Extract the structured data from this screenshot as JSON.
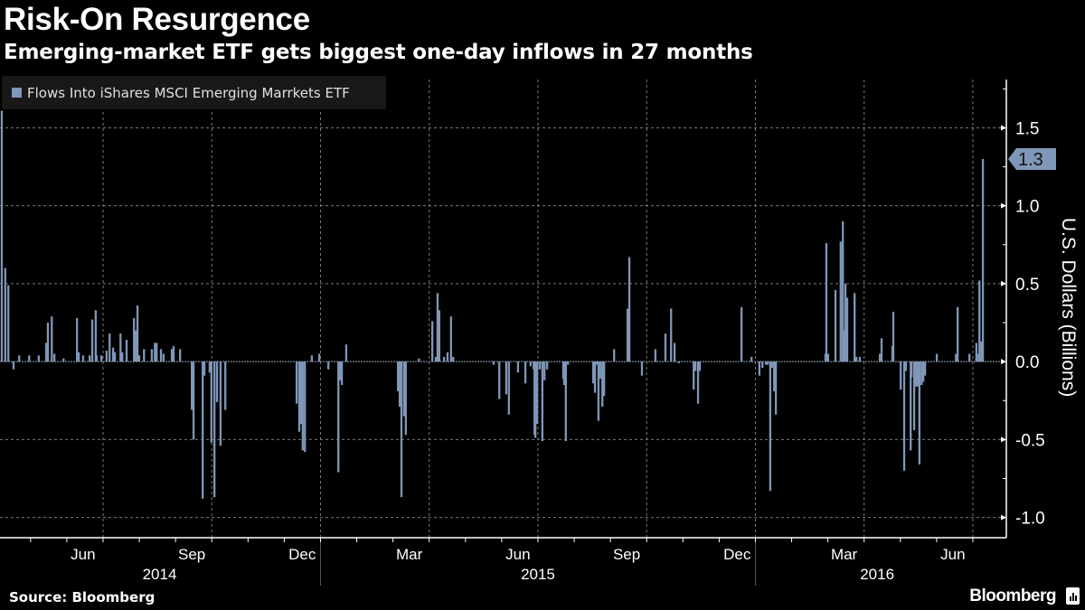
{
  "header": {
    "title": "Risk-On Resurgence",
    "subtitle": "Emerging-market ETF gets biggest one-day inflows in 27 months"
  },
  "footer": {
    "source": "Source: Bloomberg",
    "brand": "Bloomberg"
  },
  "colors": {
    "bar": "#7f97b8",
    "background": "#000000",
    "grid": "#8a8a8a"
  },
  "chart_data": {
    "type": "bar",
    "title": "Risk-On Resurgence",
    "subtitle": "Emerging-market ETF gets biggest one-day inflows in 27 months",
    "legend": [
      {
        "name": "Flows Into iShares MSCI Emerging Marrkets ETF",
        "color": "#7f97b8"
      }
    ],
    "legend_position": "top-left",
    "ylabel": "U.S. Dollars (Billions)",
    "y_axis_side": "right",
    "ylim": [
      -1.13,
      1.81
    ],
    "y_ticks": [
      {
        "value": 1.5,
        "label": "1.5"
      },
      {
        "value": 1.0,
        "label": "1.0"
      },
      {
        "value": 0.5,
        "label": "0.5"
      },
      {
        "value": 0.0,
        "label": "0.0"
      },
      {
        "value": -0.5,
        "label": "-0.5"
      },
      {
        "value": -1.0,
        "label": "-1.0"
      }
    ],
    "xlim": [
      2014.263,
      2016.577
    ],
    "x_unit": "decimal year",
    "x_month_labels": [
      {
        "value": 2014.454,
        "label": "Jun"
      },
      {
        "value": 2014.704,
        "label": "Sep"
      },
      {
        "value": 2014.958,
        "label": "Dec"
      },
      {
        "value": 2015.204,
        "label": "Mar"
      },
      {
        "value": 2015.454,
        "label": "Jun"
      },
      {
        "value": 2015.704,
        "label": "Sep"
      },
      {
        "value": 2015.958,
        "label": "Dec"
      },
      {
        "value": 2016.204,
        "label": "Mar"
      },
      {
        "value": 2016.454,
        "label": "Jun"
      }
    ],
    "x_year_labels": [
      {
        "value": 2014.63,
        "label": "2014"
      },
      {
        "value": 2015.5,
        "label": "2015"
      },
      {
        "value": 2016.28,
        "label": "2016"
      }
    ],
    "grid": true,
    "last_value": {
      "value": 1.3,
      "label": "1.3"
    },
    "series": [
      {
        "name": "Flows Into iShares MSCI Emerging Marrkets ETF",
        "points": [
          [
            2014.267,
            1.61
          ],
          [
            2014.275,
            0.6
          ],
          [
            2014.282,
            0.49
          ],
          [
            2014.294,
            -0.05
          ],
          [
            2014.307,
            0.04
          ],
          [
            2014.33,
            0.04
          ],
          [
            2014.352,
            0.04
          ],
          [
            2014.369,
            0.12
          ],
          [
            2014.373,
            0.25
          ],
          [
            2014.382,
            0.29
          ],
          [
            2014.388,
            0.05
          ],
          [
            2014.409,
            0.02
          ],
          [
            2014.44,
            0.28
          ],
          [
            2014.444,
            0.06
          ],
          [
            2014.454,
            0.04
          ],
          [
            2014.469,
            0.04
          ],
          [
            2014.475,
            0.27
          ],
          [
            2014.483,
            0.33
          ],
          [
            2014.485,
            0.04
          ],
          [
            2014.496,
            0.04
          ],
          [
            2014.508,
            0.07
          ],
          [
            2014.515,
            0.18
          ],
          [
            2014.523,
            0.09
          ],
          [
            2014.527,
            0.06
          ],
          [
            2014.54,
            0.18
          ],
          [
            2014.544,
            0.06
          ],
          [
            2014.554,
            0.14
          ],
          [
            2014.571,
            0.28
          ],
          [
            2014.575,
            0.2
          ],
          [
            2014.579,
            0.36
          ],
          [
            2014.583,
            0.04
          ],
          [
            2014.594,
            0.08
          ],
          [
            2014.612,
            0.08
          ],
          [
            2014.619,
            0.12
          ],
          [
            2014.623,
            0.12
          ],
          [
            2014.633,
            0.08
          ],
          [
            2014.639,
            0.05
          ],
          [
            2014.658,
            0.08
          ],
          [
            2014.662,
            0.1
          ],
          [
            2014.677,
            0.08
          ],
          [
            2014.704,
            -0.31
          ],
          [
            2014.708,
            -0.5
          ],
          [
            2014.729,
            -0.88
          ],
          [
            2014.733,
            -0.09
          ],
          [
            2014.745,
            -0.07
          ],
          [
            2014.749,
            -0.52
          ],
          [
            2014.756,
            -0.87
          ],
          [
            2014.762,
            -0.26
          ],
          [
            2014.77,
            -0.54
          ],
          [
            2014.781,
            -0.31
          ],
          [
            2014.945,
            -0.27
          ],
          [
            2014.951,
            -0.45
          ],
          [
            2014.955,
            -0.4
          ],
          [
            2014.959,
            -0.57
          ],
          [
            2014.964,
            -0.58
          ],
          [
            2014.98,
            0.04
          ],
          [
            2014.997,
            0.05
          ],
          [
            2015.018,
            -0.05
          ],
          [
            2015.041,
            -0.71
          ],
          [
            2015.045,
            -0.12
          ],
          [
            2015.049,
            -0.15
          ],
          [
            2015.059,
            0.11
          ],
          [
            2015.178,
            -0.19
          ],
          [
            2015.182,
            -0.29
          ],
          [
            2015.186,
            -0.87
          ],
          [
            2015.192,
            -0.35
          ],
          [
            2015.196,
            -0.47
          ],
          [
            2015.226,
            0.02
          ],
          [
            2015.257,
            0.26
          ],
          [
            2015.265,
            0.03
          ],
          [
            2015.269,
            0.44
          ],
          [
            2015.273,
            0.33
          ],
          [
            2015.284,
            0.03
          ],
          [
            2015.292,
            0.06
          ],
          [
            2015.3,
            0.29
          ],
          [
            2015.305,
            0.03
          ],
          [
            2015.398,
            -0.02
          ],
          [
            2015.411,
            -0.24
          ],
          [
            2015.427,
            -0.21
          ],
          [
            2015.433,
            -0.34
          ],
          [
            2015.454,
            -0.07
          ],
          [
            2015.471,
            -0.14
          ],
          [
            2015.483,
            -0.03
          ],
          [
            2015.49,
            -0.05
          ],
          [
            2015.492,
            -0.47
          ],
          [
            2015.494,
            -0.49
          ],
          [
            2015.498,
            -0.4
          ],
          [
            2015.504,
            -0.05
          ],
          [
            2015.51,
            -0.51
          ],
          [
            2015.515,
            -0.12
          ],
          [
            2015.521,
            -0.05
          ],
          [
            2015.558,
            -0.11
          ],
          [
            2015.56,
            -0.15
          ],
          [
            2015.564,
            -0.51
          ],
          [
            2015.569,
            -0.02
          ],
          [
            2015.627,
            -0.14
          ],
          [
            2015.631,
            -0.2
          ],
          [
            2015.635,
            -0.02
          ],
          [
            2015.639,
            -0.38
          ],
          [
            2015.643,
            -0.11
          ],
          [
            2015.648,
            -0.29
          ],
          [
            2015.652,
            -0.22
          ],
          [
            2015.675,
            0.08
          ],
          [
            2015.706,
            0.34
          ],
          [
            2015.71,
            0.67
          ],
          [
            2015.739,
            -0.09
          ],
          [
            2015.77,
            0.08
          ],
          [
            2015.793,
            0.18
          ],
          [
            2015.806,
            0.34
          ],
          [
            2015.814,
            0.12
          ],
          [
            2015.824,
            -0.01
          ],
          [
            2015.858,
            -0.18
          ],
          [
            2015.862,
            -0.06
          ],
          [
            2015.868,
            -0.27
          ],
          [
            2015.872,
            -0.06
          ],
          [
            2015.968,
            0.35
          ],
          [
            2015.991,
            0.03
          ],
          [
            2016.009,
            -0.09
          ],
          [
            2016.016,
            -0.04
          ],
          [
            2016.024,
            -0.02
          ],
          [
            2016.028,
            -0.02
          ],
          [
            2016.034,
            -0.83
          ],
          [
            2016.038,
            -0.04
          ],
          [
            2016.043,
            -0.19
          ],
          [
            2016.047,
            -0.34
          ],
          [
            2016.161,
            0.05
          ],
          [
            2016.163,
            0.76
          ],
          [
            2016.167,
            0.05
          ],
          [
            2016.184,
            0.46
          ],
          [
            2016.196,
            0.77
          ],
          [
            2016.201,
            0.9
          ],
          [
            2016.203,
            0.2
          ],
          [
            2016.207,
            0.5
          ],
          [
            2016.211,
            0.41
          ],
          [
            2016.228,
            0.44
          ],
          [
            2016.232,
            0.03
          ],
          [
            2016.24,
            0.03
          ],
          [
            2016.286,
            0.05
          ],
          [
            2016.29,
            0.15
          ],
          [
            2016.315,
            0.1
          ],
          [
            2016.317,
            0.32
          ],
          [
            2016.334,
            -0.18
          ],
          [
            2016.342,
            -0.7
          ],
          [
            2016.346,
            -0.06
          ],
          [
            2016.357,
            -0.57
          ],
          [
            2016.359,
            -0.1
          ],
          [
            2016.365,
            -0.44
          ],
          [
            2016.369,
            -0.16
          ],
          [
            2016.373,
            -0.16
          ],
          [
            2016.377,
            -0.66
          ],
          [
            2016.382,
            -0.15
          ],
          [
            2016.386,
            -0.13
          ],
          [
            2016.39,
            -0.09
          ],
          [
            2016.417,
            0.05
          ],
          [
            2016.461,
            0.05
          ],
          [
            2016.465,
            0.35
          ],
          [
            2016.492,
            0.05
          ],
          [
            2016.508,
            0.12
          ],
          [
            2016.513,
            0.05
          ],
          [
            2016.515,
            0.52
          ],
          [
            2016.519,
            0.13
          ],
          [
            2016.523,
            1.3
          ]
        ]
      }
    ]
  }
}
